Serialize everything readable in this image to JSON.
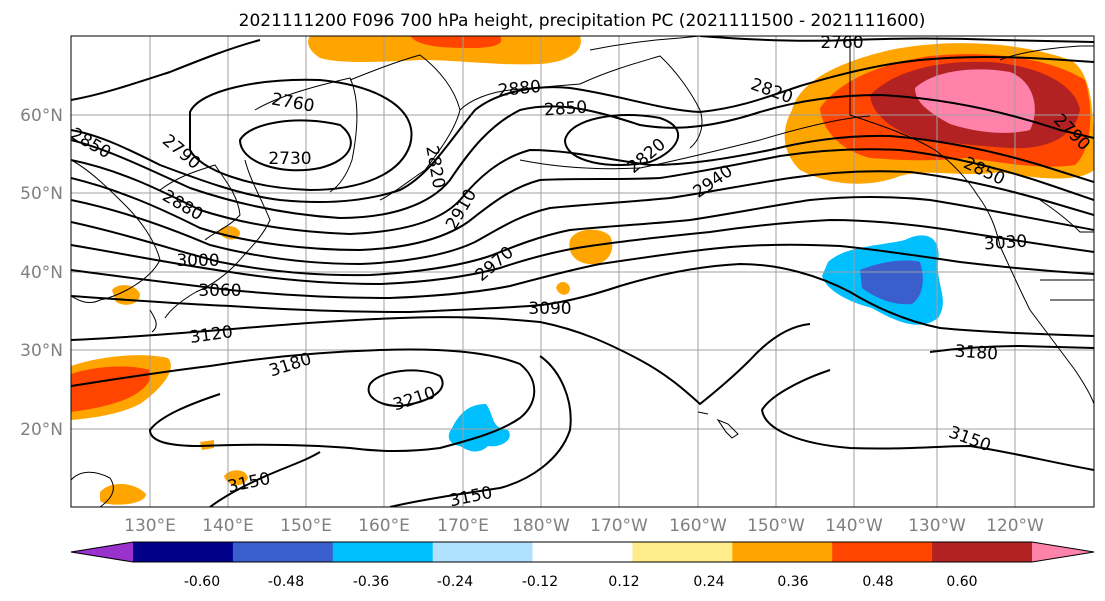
{
  "title": "2021111200 F096 700 hPa height, precipitation PC (2021111500 - 2021111600)",
  "latitude_labels": [
    "60°N",
    "50°N",
    "40°N",
    "30°N",
    "20°N"
  ],
  "longitude_labels": [
    "130°E",
    "140°E",
    "150°E",
    "160°E",
    "170°E",
    "180°W",
    "170°W",
    "160°W",
    "150°W",
    "140°W",
    "130°W",
    "120°W"
  ],
  "contour_labels": [
    "2760",
    "2730",
    "2850",
    "2790",
    "2880",
    "2820",
    "2880",
    "2850",
    "2820",
    "2760",
    "2820",
    "2790",
    "2850",
    "2910",
    "2940",
    "2970",
    "3000",
    "3060",
    "3030",
    "3090",
    "3120",
    "3180",
    "3210",
    "3180",
    "3150",
    "3150",
    "3150"
  ],
  "colorbar": {
    "tick_labels": [
      "-0.60",
      "-0.48",
      "-0.36",
      "-0.24",
      "-0.12",
      "0.12",
      "0.24",
      "0.36",
      "0.48",
      "0.60"
    ],
    "colors": [
      "#9932cc",
      "#00008b",
      "#3a5fcd",
      "#00bfff",
      "#b0e2ff",
      "#ffffff",
      "#ffec8b",
      "#ffa500",
      "#ff4500",
      "#b22222",
      "#ff82ab"
    ]
  }
}
